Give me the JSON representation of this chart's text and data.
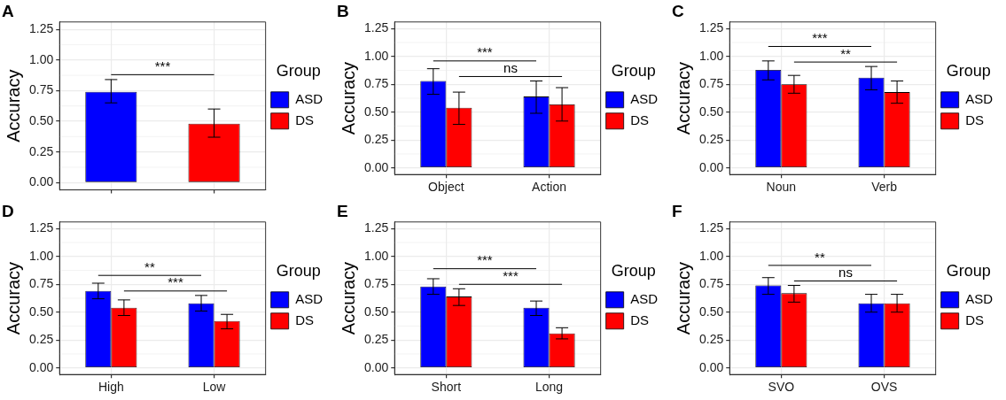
{
  "chart_data": [
    {
      "type": "bar",
      "title": "A",
      "ylabel": "Accuracy",
      "legend_title": "Group",
      "legend": "right",
      "grid": true,
      "tick_labels": "y",
      "categories": [
        null,
        null
      ],
      "series": [
        {
          "name": "ASD",
          "color": "#0000ff",
          "values": [
            0.74,
            null
          ],
          "errors": [
            [
              0.65,
              0.84
            ],
            null
          ]
        },
        {
          "name": "DS",
          "color": "#ff0000",
          "values": [
            null,
            0.48
          ],
          "errors": [
            null,
            [
              0.37,
              0.6
            ]
          ]
        }
      ],
      "ylim": [
        -0.06,
        1.31
      ],
      "yticks": [
        {
          "value": 0,
          "label": "0.00"
        },
        0.25,
        {
          "value": 0.5,
          "label": "0.50"
        },
        0.75,
        {
          "value": 1,
          "label": "1.00"
        },
        1.25
      ],
      "annotations": [
        "***"
      ]
    },
    {
      "type": "bar",
      "title": "B",
      "ylabel": "Accuracy",
      "legend_title": "Group",
      "legend": "right",
      "grid": true,
      "categories": [
        "Object",
        "Action"
      ],
      "series": [
        {
          "name": "ASD",
          "color": "#0000ff",
          "values": [
            0.78,
            0.64
          ],
          "errors": [
            [
              0.66,
              0.89
            ],
            [
              0.49,
              0.78
            ]
          ]
        },
        {
          "name": "DS",
          "color": "#ff0000",
          "values": [
            0.54,
            0.57
          ],
          "errors": [
            [
              0.39,
              0.68
            ],
            [
              0.42,
              0.72
            ]
          ]
        }
      ],
      "ylim": [
        -0.06,
        1.31
      ],
      "yticks": [
        {
          "value": 0,
          "label": "0.00"
        },
        0.25,
        {
          "value": 0.5,
          "label": "0.50"
        },
        0.75,
        {
          "value": 1,
          "label": "1.00"
        },
        1.25
      ],
      "annotations": [
        "***",
        "ns"
      ]
    },
    {
      "type": "bar",
      "title": "C",
      "ylabel": "Accuracy",
      "legend_title": "Group",
      "legend": "right",
      "grid": true,
      "categories": [
        "Noun",
        "Verb"
      ],
      "series": [
        {
          "name": "ASD",
          "color": "#0000ff",
          "values": [
            0.88,
            0.81
          ],
          "errors": [
            [
              0.79,
              0.96
            ],
            [
              0.7,
              0.91
            ]
          ]
        },
        {
          "name": "DS",
          "color": "#ff0000",
          "values": [
            0.75,
            0.68
          ],
          "errors": [
            [
              0.67,
              0.83
            ],
            [
              0.58,
              0.78
            ]
          ]
        }
      ],
      "ylim": [
        -0.06,
        1.31
      ],
      "yticks": [
        {
          "value": 0,
          "label": "0.00"
        },
        0.25,
        {
          "value": 0.5,
          "label": "0.50"
        },
        0.75,
        {
          "value": 1,
          "label": "1.00"
        },
        1.25
      ],
      "annotations": [
        "***",
        "**"
      ]
    },
    {
      "type": "bar",
      "title": "D",
      "ylabel": "Accuracy",
      "legend_title": "Group",
      "legend": "right",
      "grid": true,
      "categories": [
        "High",
        "Low"
      ],
      "series": [
        {
          "name": "ASD",
          "color": "#0000ff",
          "values": [
            0.69,
            0.58
          ],
          "errors": [
            [
              0.62,
              0.76
            ],
            [
              0.51,
              0.65
            ]
          ]
        },
        {
          "name": "DS",
          "color": "#ff0000",
          "values": [
            0.54,
            0.42
          ],
          "errors": [
            [
              0.47,
              0.61
            ],
            [
              0.35,
              0.48
            ]
          ]
        }
      ],
      "ylim": [
        -0.06,
        1.31
      ],
      "yticks": [
        {
          "value": 0,
          "label": "0.00"
        },
        0.25,
        {
          "value": 0.5,
          "label": "0.50"
        },
        0.75,
        {
          "value": 1,
          "label": "1.00"
        },
        1.25
      ],
      "annotations": [
        "**",
        "***"
      ]
    },
    {
      "type": "bar",
      "title": "E",
      "ylabel": "Accuracy",
      "legend_title": "Group",
      "legend": "right",
      "grid": true,
      "categories": [
        "Short",
        "Long"
      ],
      "series": [
        {
          "name": "ASD",
          "color": "#0000ff",
          "values": [
            0.73,
            0.54
          ],
          "errors": [
            [
              0.66,
              0.8
            ],
            [
              0.47,
              0.6
            ]
          ]
        },
        {
          "name": "DS",
          "color": "#ff0000",
          "values": [
            0.64,
            0.31
          ],
          "errors": [
            [
              0.56,
              0.71
            ],
            [
              0.26,
              0.36
            ]
          ]
        }
      ],
      "ylim": [
        -0.06,
        1.31
      ],
      "yticks": [
        {
          "value": 0,
          "label": "0.00"
        },
        0.25,
        {
          "value": 0.5,
          "label": "0.50"
        },
        0.75,
        {
          "value": 1,
          "label": "1.00"
        },
        1.25
      ],
      "annotations": [
        "***",
        "***"
      ]
    },
    {
      "type": "bar",
      "title": "F",
      "ylabel": "Accuracy",
      "legend_title": "Group",
      "legend": "right",
      "grid": true,
      "categories": [
        "SVO",
        "OVS"
      ],
      "series": [
        {
          "name": "ASD",
          "color": "#0000ff",
          "values": [
            0.74,
            0.58
          ],
          "errors": [
            [
              0.66,
              0.81
            ],
            [
              0.5,
              0.66
            ]
          ]
        },
        {
          "name": "DS",
          "color": "#ff0000",
          "values": [
            0.67,
            0.58
          ],
          "errors": [
            [
              0.59,
              0.74
            ],
            [
              0.5,
              0.66
            ]
          ]
        }
      ],
      "ylim": [
        -0.06,
        1.31
      ],
      "yticks": [
        {
          "value": 0,
          "label": "0.00"
        },
        0.25,
        {
          "value": 0.5,
          "label": "0.50"
        },
        0.75,
        {
          "value": 1,
          "label": "1.00"
        },
        1.25
      ],
      "annotations": [
        "**",
        "ns"
      ]
    }
  ]
}
